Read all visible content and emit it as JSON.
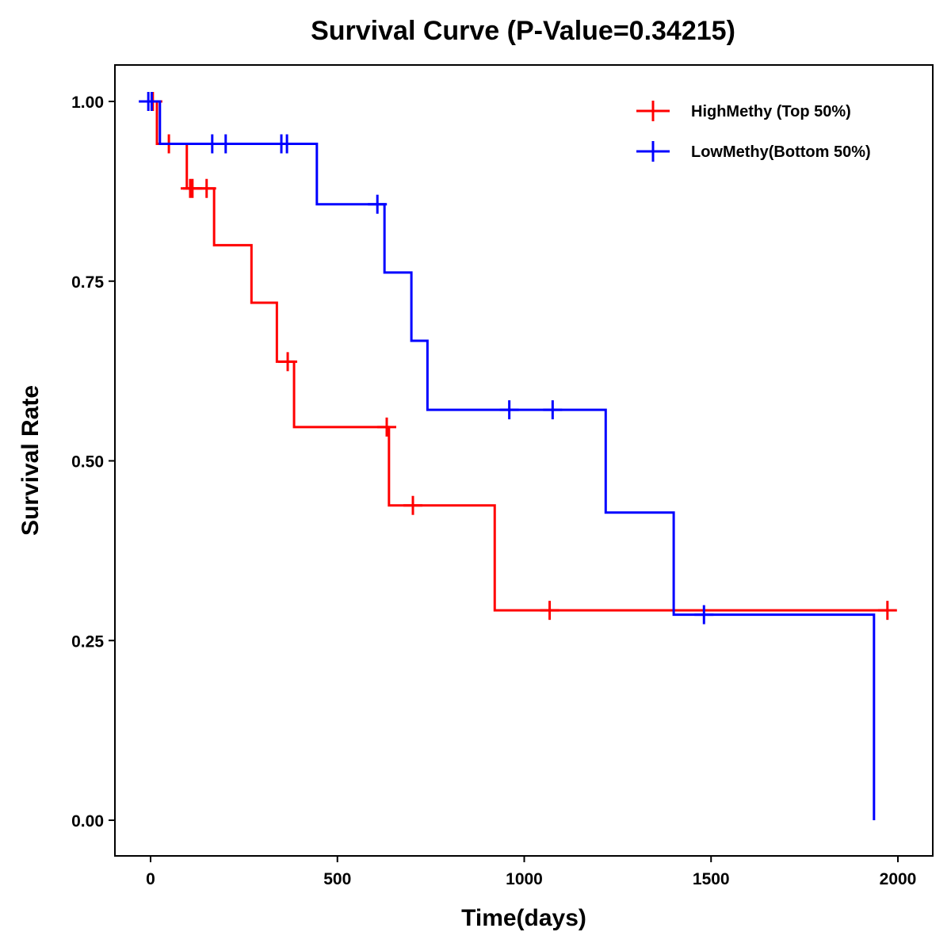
{
  "chart_data": {
    "type": "line",
    "subtype": "kaplan-meier-step",
    "title": "Survival Curve (P-Value=0.34215)",
    "xlabel": "Time(days)",
    "ylabel": "Survival Rate",
    "xlim": [
      -90,
      2100
    ],
    "ylim": [
      -0.05,
      1.05
    ],
    "xticks": [
      0,
      500,
      1000,
      1500,
      2000
    ],
    "xtick_labels": [
      "0",
      "500",
      "1000",
      "1500",
      "2000"
    ],
    "yticks": [
      0,
      0.25,
      0.5,
      0.75,
      1.0
    ],
    "ytick_labels": [
      "0.00",
      "0.25",
      "0.50",
      "0.75",
      "1.00"
    ],
    "grid": false,
    "legend_position": "top-right",
    "series": [
      {
        "name": "HighMethy (Top 50%)",
        "color": "#ff0000",
        "steps": [
          {
            "time": 0,
            "survival": 1.0
          },
          {
            "time": 17,
            "survival": 0.941
          },
          {
            "time": 97,
            "survival": 0.879
          },
          {
            "time": 170,
            "survival": 0.8
          },
          {
            "time": 270,
            "survival": 0.72
          },
          {
            "time": 338,
            "survival": 0.638
          },
          {
            "time": 384,
            "survival": 0.547
          },
          {
            "time": 638,
            "survival": 0.438
          },
          {
            "time": 921,
            "survival": 0.292
          }
        ],
        "end_time": 1972,
        "censored": [
          {
            "time": 6,
            "survival": 1.0
          },
          {
            "time": 49,
            "survival": 0.941
          },
          {
            "time": 106,
            "survival": 0.879
          },
          {
            "time": 112,
            "survival": 0.879
          },
          {
            "time": 150,
            "survival": 0.879
          },
          {
            "time": 367,
            "survival": 0.638
          },
          {
            "time": 632,
            "survival": 0.547
          },
          {
            "time": 702,
            "survival": 0.438
          },
          {
            "time": 1068,
            "survival": 0.292
          },
          {
            "time": 1972,
            "survival": 0.292
          }
        ]
      },
      {
        "name": "LowMethy(Bottom 50%)",
        "color": "#0000ff",
        "steps": [
          {
            "time": 0,
            "survival": 1.0
          },
          {
            "time": 25,
            "survival": 0.941
          },
          {
            "time": 445,
            "survival": 0.857
          },
          {
            "time": 626,
            "survival": 0.762
          },
          {
            "time": 698,
            "survival": 0.667
          },
          {
            "time": 741,
            "survival": 0.571
          },
          {
            "time": 1218,
            "survival": 0.428
          },
          {
            "time": 1400,
            "survival": 0.286
          },
          {
            "time": 1936,
            "survival": 0.0
          }
        ],
        "end_time": 1936,
        "censored": [
          {
            "time": -6,
            "survival": 1.0
          },
          {
            "time": 3,
            "survival": 1.0
          },
          {
            "time": 165,
            "survival": 0.941
          },
          {
            "time": 201,
            "survival": 0.941
          },
          {
            "time": 350,
            "survival": 0.941
          },
          {
            "time": 365,
            "survival": 0.941
          },
          {
            "time": 607,
            "survival": 0.857
          },
          {
            "time": 960,
            "survival": 0.571
          },
          {
            "time": 1076,
            "survival": 0.571
          },
          {
            "time": 1481,
            "survival": 0.286
          }
        ]
      }
    ]
  }
}
